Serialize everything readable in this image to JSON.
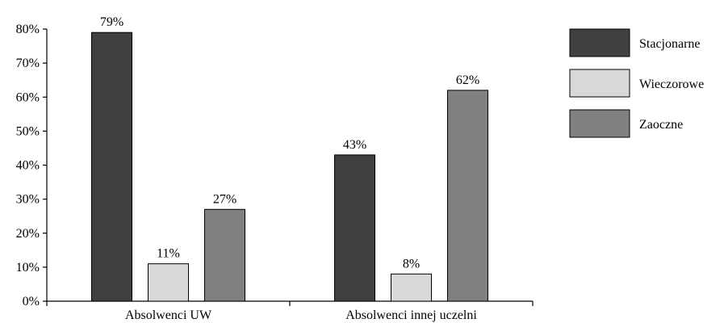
{
  "chart_data": {
    "type": "bar",
    "categories": [
      "Absolwenci UW",
      "Absolwenci innej uczelni"
    ],
    "series": [
      {
        "name": "Stacjonarne",
        "values": [
          79,
          43
        ],
        "color": "#404040"
      },
      {
        "name": "Wieczorowe",
        "values": [
          11,
          8
        ],
        "color": "#d9d9d9"
      },
      {
        "name": "Zaoczne",
        "values": [
          27,
          62
        ],
        "color": "#808080"
      }
    ],
    "data_label_suffix": "%",
    "y_ticks": [
      "0%",
      "10%",
      "20%",
      "30%",
      "40%",
      "50%",
      "60%",
      "70%",
      "80%"
    ],
    "ylim": [
      0,
      80
    ],
    "legend_position": "right",
    "grid": false
  }
}
